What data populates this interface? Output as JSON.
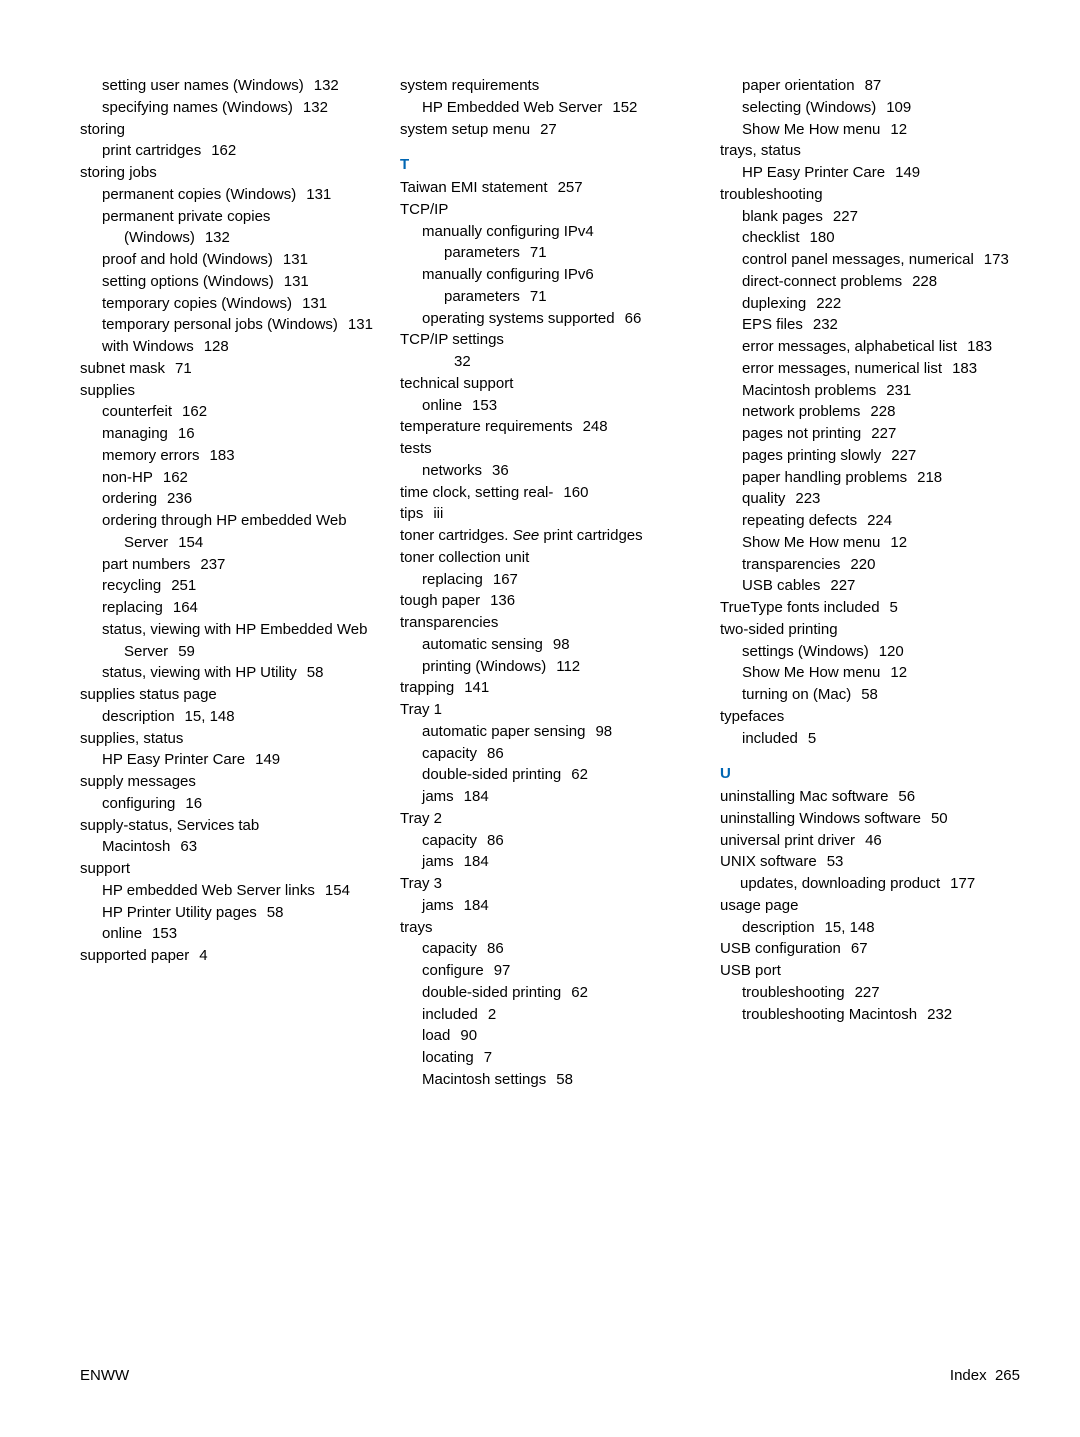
{
  "footer": {
    "left": "ENWW",
    "right_label": "Index",
    "right_page": "265"
  },
  "sections": {
    "T": "T",
    "U": "U"
  },
  "col1": [
    {
      "lvl": 2,
      "t": "setting user names (Windows)",
      "p": "132"
    },
    {
      "lvl": 2,
      "t": "specifying names (Windows)",
      "p": "132"
    },
    {
      "lvl": 0,
      "t": "storing"
    },
    {
      "lvl": 2,
      "t": "print cartridges",
      "p": "162"
    },
    {
      "lvl": 0,
      "t": "storing jobs"
    },
    {
      "lvl": 2,
      "t": "permanent copies (Windows)",
      "p": "131"
    },
    {
      "lvl": 2,
      "t": "permanent private copies (Windows)",
      "p": "132"
    },
    {
      "lvl": 2,
      "t": "proof and hold (Windows)",
      "p": "131"
    },
    {
      "lvl": 2,
      "t": "setting options (Windows)",
      "p": "131"
    },
    {
      "lvl": 2,
      "t": "temporary copies (Windows)",
      "p": "131"
    },
    {
      "lvl": 2,
      "t": "temporary personal jobs (Windows)",
      "p": "131"
    },
    {
      "lvl": 2,
      "t": "with Windows",
      "p": "128"
    },
    {
      "lvl": 0,
      "t": "subnet mask",
      "p": "71"
    },
    {
      "lvl": 0,
      "t": "supplies"
    },
    {
      "lvl": 2,
      "t": "counterfeit",
      "p": "162"
    },
    {
      "lvl": 2,
      "t": "managing",
      "p": "16"
    },
    {
      "lvl": 2,
      "t": "memory errors",
      "p": "183"
    },
    {
      "lvl": 2,
      "t": "non-HP",
      "p": "162"
    },
    {
      "lvl": 2,
      "t": "ordering",
      "p": "236"
    },
    {
      "lvl": 2,
      "t": "ordering through HP embedded Web Server",
      "p": "154"
    },
    {
      "lvl": 2,
      "t": "part numbers",
      "p": "237"
    },
    {
      "lvl": 2,
      "t": "recycling",
      "p": "251"
    },
    {
      "lvl": 2,
      "t": "replacing",
      "p": "164"
    },
    {
      "lvl": 2,
      "t": "status, viewing with HP Embedded Web Server",
      "p": "59"
    },
    {
      "lvl": 2,
      "t": "status, viewing with HP Utility",
      "p": "58"
    },
    {
      "lvl": 0,
      "t": "supplies status page"
    },
    {
      "lvl": 2,
      "t": "description",
      "p": "15, 148"
    },
    {
      "lvl": 0,
      "t": "supplies, status"
    },
    {
      "lvl": 2,
      "t": "HP Easy Printer Care",
      "p": "149"
    },
    {
      "lvl": 0,
      "t": "supply messages"
    },
    {
      "lvl": 2,
      "t": "configuring",
      "p": "16"
    },
    {
      "lvl": 0,
      "t": "supply-status, Services tab"
    },
    {
      "lvl": 2,
      "t": "Macintosh",
      "p": "63"
    },
    {
      "lvl": 0,
      "t": "support"
    },
    {
      "lvl": 2,
      "t": "HP embedded Web Server links",
      "p": "154"
    },
    {
      "lvl": 2,
      "t": "HP Printer Utility pages",
      "p": "58"
    },
    {
      "lvl": 2,
      "t": "online",
      "p": "153"
    },
    {
      "lvl": 0,
      "t": "supported paper",
      "p": "4"
    }
  ],
  "col2_top": [
    {
      "lvl": 0,
      "t": "system requirements"
    },
    {
      "lvl": 2,
      "t": "HP Embedded Web Server",
      "p": "152"
    },
    {
      "lvl": 0,
      "t": "system setup menu",
      "p": "27"
    }
  ],
  "col2_T": [
    {
      "lvl": 0,
      "t": "Taiwan EMI statement",
      "p": "257"
    },
    {
      "lvl": 0,
      "t": "TCP/IP"
    },
    {
      "lvl": 2,
      "t": "manually configuring IPv4 parameters",
      "p": "71"
    },
    {
      "lvl": 2,
      "t": "manually configuring IPv6 parameters",
      "p": "71"
    },
    {
      "lvl": 2,
      "t": "operating systems supported",
      "p": "66"
    },
    {
      "lvl": 0,
      "t": "TCP/IP settings"
    },
    {
      "lvl": 3,
      "t": "",
      "p": "32"
    },
    {
      "lvl": 0,
      "t": "technical support"
    },
    {
      "lvl": 2,
      "t": "online",
      "p": "153"
    },
    {
      "lvl": 0,
      "t": "temperature requirements",
      "p": "248"
    },
    {
      "lvl": 0,
      "t": "tests"
    },
    {
      "lvl": 2,
      "t": "networks",
      "p": "36"
    },
    {
      "lvl": 0,
      "t": "time clock, setting real-",
      "p": "160"
    },
    {
      "lvl": 0,
      "t": "tips",
      "p": "iii"
    },
    {
      "lvl": 0,
      "t_pre": "toner cartridges. ",
      "t_it": "See",
      "t_post": " print cartridges",
      "see": true
    },
    {
      "lvl": 0,
      "t": "toner collection unit"
    },
    {
      "lvl": 2,
      "t": "replacing",
      "p": "167"
    },
    {
      "lvl": 0,
      "t": "tough paper",
      "p": "136"
    },
    {
      "lvl": 0,
      "t": "transparencies"
    },
    {
      "lvl": 2,
      "t": "automatic sensing",
      "p": "98"
    },
    {
      "lvl": 2,
      "t": "printing (Windows)",
      "p": "112"
    },
    {
      "lvl": 0,
      "t": "trapping",
      "p": "141"
    },
    {
      "lvl": 0,
      "t": "Tray 1"
    },
    {
      "lvl": 2,
      "t": "automatic paper sensing",
      "p": "98"
    },
    {
      "lvl": 2,
      "t": "capacity",
      "p": "86"
    },
    {
      "lvl": 2,
      "t": "double-sided printing",
      "p": "62"
    },
    {
      "lvl": 2,
      "t": "jams",
      "p": "184"
    },
    {
      "lvl": 0,
      "t": "Tray 2"
    },
    {
      "lvl": 2,
      "t": "capacity",
      "p": "86"
    },
    {
      "lvl": 2,
      "t": "jams",
      "p": "184"
    },
    {
      "lvl": 0,
      "t": "Tray 3"
    },
    {
      "lvl": 2,
      "t": "jams",
      "p": "184"
    },
    {
      "lvl": 0,
      "t": "trays"
    },
    {
      "lvl": 2,
      "t": "capacity",
      "p": "86"
    },
    {
      "lvl": 2,
      "t": "configure",
      "p": "97"
    },
    {
      "lvl": 2,
      "t": "double-sided printing",
      "p": "62"
    },
    {
      "lvl": 2,
      "t": "included",
      "p": "2"
    },
    {
      "lvl": 2,
      "t": "load",
      "p": "90"
    },
    {
      "lvl": 2,
      "t": "locating",
      "p": "7"
    },
    {
      "lvl": 2,
      "t": "Macintosh settings",
      "p": "58"
    }
  ],
  "col3_top": [
    {
      "lvl": 2,
      "t": "paper orientation",
      "p": "87"
    },
    {
      "lvl": 2,
      "t": "selecting (Windows)",
      "p": "109"
    },
    {
      "lvl": 2,
      "t": "Show Me How menu",
      "p": "12"
    },
    {
      "lvl": 0,
      "t": "trays, status"
    },
    {
      "lvl": 2,
      "t": "HP Easy Printer Care",
      "p": "149"
    },
    {
      "lvl": 0,
      "t": "troubleshooting"
    },
    {
      "lvl": 2,
      "t": "blank pages",
      "p": "227"
    },
    {
      "lvl": 2,
      "t": "checklist",
      "p": "180"
    },
    {
      "lvl": 2,
      "t": "control panel messages, numerical",
      "p": "173"
    },
    {
      "lvl": 2,
      "t": "direct-connect problems",
      "p": "228"
    },
    {
      "lvl": 2,
      "t": "duplexing",
      "p": "222"
    },
    {
      "lvl": 2,
      "t": "EPS files",
      "p": "232"
    },
    {
      "lvl": 2,
      "t": "error messages, alphabetical list",
      "p": "183"
    },
    {
      "lvl": 2,
      "t": "error messages, numerical list",
      "p": "183"
    },
    {
      "lvl": 2,
      "t": "Macintosh problems",
      "p": "231"
    },
    {
      "lvl": 2,
      "t": "network problems",
      "p": "228"
    },
    {
      "lvl": 2,
      "t": "pages not printing",
      "p": "227"
    },
    {
      "lvl": 2,
      "t": "pages printing slowly",
      "p": "227"
    },
    {
      "lvl": 2,
      "t": "paper handling problems",
      "p": "218"
    },
    {
      "lvl": 2,
      "t": "quality",
      "p": "223"
    },
    {
      "lvl": 2,
      "t": "repeating defects",
      "p": "224"
    },
    {
      "lvl": 2,
      "t": "Show Me How menu",
      "p": "12"
    },
    {
      "lvl": 2,
      "t": "transparencies",
      "p": "220"
    },
    {
      "lvl": 2,
      "t": "USB cables",
      "p": "227"
    },
    {
      "lvl": 0,
      "t": "TrueType fonts included",
      "p": "5"
    },
    {
      "lvl": 0,
      "t": "two-sided printing"
    },
    {
      "lvl": 2,
      "t": "settings (Windows)",
      "p": "120"
    },
    {
      "lvl": 2,
      "t": "Show Me How menu",
      "p": "12"
    },
    {
      "lvl": 2,
      "t": "turning on (Mac)",
      "p": "58"
    },
    {
      "lvl": 0,
      "t": "typefaces"
    },
    {
      "lvl": 2,
      "t": "included",
      "p": "5"
    }
  ],
  "col3_U": [
    {
      "lvl": 0,
      "t": "uninstalling Mac software",
      "p": "56"
    },
    {
      "lvl": 0,
      "t": "uninstalling Windows software",
      "p": "50"
    },
    {
      "lvl": 0,
      "t": "universal print driver",
      "p": "46"
    },
    {
      "lvl": 0,
      "t": "UNIX software",
      "p": "53"
    },
    {
      "lvl": 0,
      "t": "updates, downloading product",
      "p": "177",
      "lvl2b": true
    },
    {
      "lvl": 0,
      "t": "usage page"
    },
    {
      "lvl": 2,
      "t": "description",
      "p": "15, 148"
    },
    {
      "lvl": 0,
      "t": "USB configuration",
      "p": "67"
    },
    {
      "lvl": 0,
      "t": "USB port"
    },
    {
      "lvl": 2,
      "t": "troubleshooting",
      "p": "227"
    },
    {
      "lvl": 2,
      "t": "troubleshooting Macintosh",
      "p": "232"
    }
  ]
}
